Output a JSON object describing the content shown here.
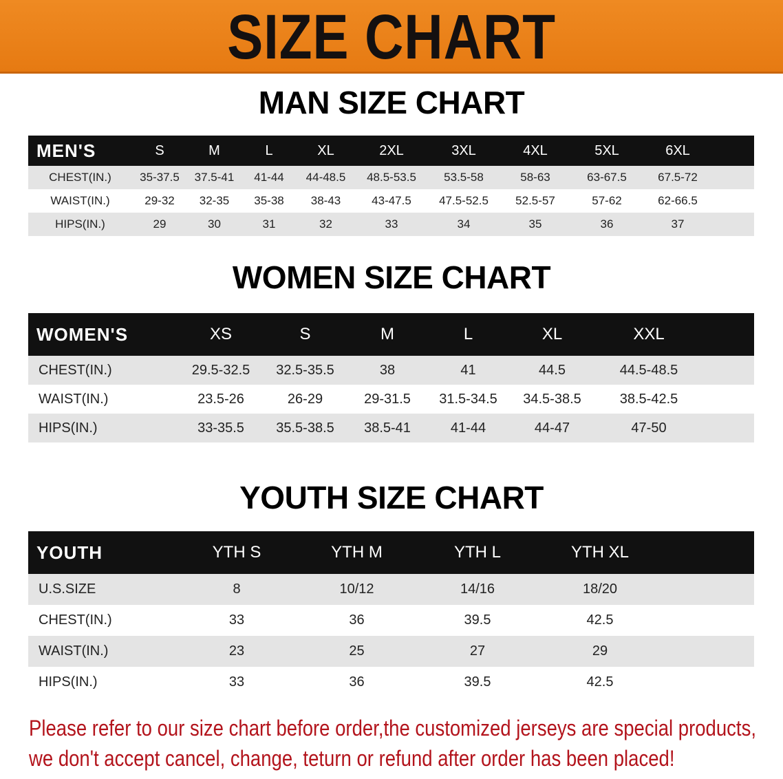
{
  "banner_title": "SIZE CHART",
  "colors": {
    "banner": "#e67a12",
    "header_bg": "#111111",
    "row_alt": "#e4e4e4",
    "notice_text": "#b3141c"
  },
  "men": {
    "title": "MAN SIZE CHART",
    "headers": [
      "MEN'S",
      "S",
      "M",
      "L",
      "XL",
      "2XL",
      "3XL",
      "4XL",
      "5XL",
      "6XL"
    ],
    "rows": [
      [
        "CHEST(IN.)",
        "35-37.5",
        "37.5-41",
        "41-44",
        "44-48.5",
        "48.5-53.5",
        "53.5-58",
        "58-63",
        "63-67.5",
        "67.5-72"
      ],
      [
        "WAIST(IN.)",
        "29-32",
        "32-35",
        "35-38",
        "38-43",
        "43-47.5",
        "47.5-52.5",
        "52.5-57",
        "57-62",
        "62-66.5"
      ],
      [
        "HIPS(IN.)",
        "29",
        "30",
        "31",
        "32",
        "33",
        "34",
        "35",
        "36",
        "37"
      ]
    ]
  },
  "women": {
    "title": "WOMEN SIZE CHART",
    "headers": [
      "WOMEN'S",
      "XS",
      "S",
      "M",
      "L",
      "XL",
      "XXL"
    ],
    "rows": [
      [
        "CHEST(IN.)",
        "29.5-32.5",
        "32.5-35.5",
        "38",
        "41",
        "44.5",
        "44.5-48.5"
      ],
      [
        "WAIST(IN.)",
        "23.5-26",
        "26-29",
        "29-31.5",
        "31.5-34.5",
        "34.5-38.5",
        "38.5-42.5"
      ],
      [
        "HIPS(IN.)",
        "33-35.5",
        "35.5-38.5",
        "38.5-41",
        "41-44",
        "44-47",
        "47-50"
      ]
    ]
  },
  "youth": {
    "title": "YOUTH SIZE CHART",
    "headers": [
      "YOUTH",
      "YTH S",
      "YTH M",
      "YTH L",
      "YTH XL"
    ],
    "rows": [
      [
        "U.S.SIZE",
        "8",
        "10/12",
        "14/16",
        "18/20"
      ],
      [
        "CHEST(IN.)",
        "33",
        "36",
        "39.5",
        "42.5"
      ],
      [
        "WAIST(IN.)",
        "23",
        "25",
        "27",
        "29"
      ],
      [
        "HIPS(IN.)",
        "33",
        "36",
        "39.5",
        "42.5"
      ]
    ]
  },
  "notice": {
    "line1": "Please refer to our size chart before order,the customized jerseys are special products,",
    "line2": "we don't accept cancel, change, teturn or refund after order has been placed!"
  }
}
